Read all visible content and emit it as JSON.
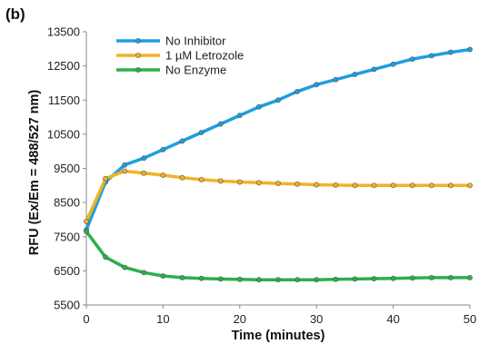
{
  "panel_label": "(b)",
  "chart_data": {
    "type": "line",
    "title": "",
    "xlabel": "Time (minutes)",
    "ylabel": "RFU (Ex/Em = 488/527 nm)",
    "xlim": [
      0,
      50
    ],
    "ylim": [
      5500,
      13500
    ],
    "xticks": [
      0,
      10,
      20,
      30,
      40,
      50
    ],
    "yticks": [
      5500,
      6500,
      7500,
      8500,
      9500,
      10500,
      11500,
      12500,
      13500
    ],
    "grid": false,
    "legend_position": "top-left",
    "x": [
      0,
      2.5,
      5,
      7.5,
      10,
      12.5,
      15,
      17.5,
      20,
      22.5,
      25,
      27.5,
      30,
      32.5,
      35,
      37.5,
      40,
      42.5,
      45,
      47.5,
      50
    ],
    "series": [
      {
        "name": "No Inhibitor",
        "color": "#1e9fe0",
        "values": [
          7700,
          9100,
          9600,
          9800,
          10050,
          10300,
          10550,
          10800,
          11050,
          11300,
          11500,
          11750,
          11950,
          12100,
          12250,
          12400,
          12550,
          12700,
          12800,
          12900,
          12980
        ]
      },
      {
        "name": "1 µM Letrozole",
        "color": "#f0b323",
        "values": [
          7950,
          9200,
          9420,
          9360,
          9300,
          9230,
          9170,
          9130,
          9100,
          9080,
          9060,
          9040,
          9020,
          9010,
          9000,
          9000,
          9000,
          9000,
          9000,
          9000,
          9000
        ]
      },
      {
        "name": "No Enzyme",
        "color": "#2bb04a",
        "values": [
          7650,
          6900,
          6600,
          6450,
          6350,
          6300,
          6280,
          6260,
          6250,
          6240,
          6240,
          6240,
          6240,
          6250,
          6260,
          6270,
          6280,
          6290,
          6300,
          6300,
          6300
        ]
      }
    ]
  }
}
